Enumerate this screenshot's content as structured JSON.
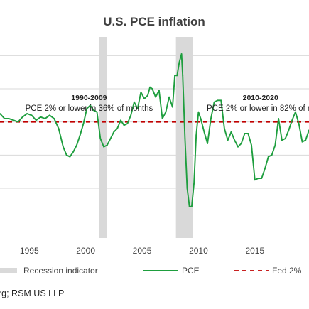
{
  "chart_data": {
    "type": "line",
    "title": "U.S. PCE inflation",
    "x_range": [
      1992.4,
      2019.8
    ],
    "y_range": [
      -1.5,
      4.5
    ],
    "grid": "horizontal",
    "x_ticks": [
      {
        "value": 1995,
        "label": "1995"
      },
      {
        "value": 2000,
        "label": "2000"
      },
      {
        "value": 2005,
        "label": "2005"
      },
      {
        "value": 2010,
        "label": "2010"
      },
      {
        "value": 2015,
        "label": "2015"
      }
    ],
    "y_gridlines": [
      0,
      1,
      2,
      3,
      4
    ],
    "recessions": [
      {
        "start": 2001.2,
        "end": 2001.9
      },
      {
        "start": 2008.0,
        "end": 2009.5
      }
    ],
    "reference_line": {
      "name": "Fed 2%",
      "value": 2.0,
      "color": "#c00000"
    },
    "series": [
      {
        "name": "PCE",
        "color": "#1e9e3e",
        "x": [
          1992.4,
          1992.8,
          1993.2,
          1993.6,
          1994.0,
          1994.4,
          1994.8,
          1995.2,
          1995.6,
          1996.0,
          1996.4,
          1996.8,
          1997.2,
          1997.6,
          1998.0,
          1998.3,
          1998.6,
          1998.9,
          1999.2,
          1999.5,
          1999.8,
          2000.1,
          2000.4,
          2000.7,
          2001.0,
          2001.3,
          2001.6,
          2001.9,
          2002.2,
          2002.5,
          2002.8,
          2003.1,
          2003.4,
          2003.7,
          2004.0,
          2004.3,
          2004.6,
          2004.9,
          2005.2,
          2005.5,
          2005.7,
          2005.9,
          2006.2,
          2006.5,
          2006.8,
          2007.1,
          2007.4,
          2007.7,
          2007.9,
          2008.1,
          2008.3,
          2008.5,
          2008.6,
          2008.8,
          2009.0,
          2009.2,
          2009.4,
          2009.6,
          2009.8,
          2010.0,
          2010.2,
          2010.5,
          2010.8,
          2011.1,
          2011.4,
          2011.7,
          2012.0,
          2012.3,
          2012.6,
          2012.9,
          2013.2,
          2013.5,
          2013.8,
          2014.1,
          2014.4,
          2014.7,
          2015.0,
          2015.3,
          2015.6,
          2015.9,
          2016.2,
          2016.5,
          2016.8,
          2017.1,
          2017.4,
          2017.7,
          2018.0,
          2018.3,
          2018.6,
          2018.9,
          2019.2,
          2019.5,
          2019.8
        ],
        "y": [
          2.25,
          2.1,
          2.1,
          2.05,
          2.0,
          2.15,
          2.25,
          2.2,
          2.05,
          2.15,
          2.1,
          2.2,
          2.1,
          1.8,
          1.25,
          1.0,
          0.95,
          1.1,
          1.3,
          1.6,
          1.95,
          2.4,
          2.5,
          2.35,
          2.3,
          1.5,
          1.25,
          1.3,
          1.5,
          1.7,
          1.8,
          2.05,
          1.9,
          1.95,
          2.2,
          2.6,
          2.4,
          2.9,
          2.7,
          2.8,
          3.05,
          3.0,
          2.75,
          2.95,
          2.1,
          2.3,
          2.75,
          2.45,
          3.4,
          3.4,
          3.8,
          4.05,
          3.4,
          1.5,
          0.0,
          -0.55,
          -0.55,
          0.15,
          1.6,
          2.3,
          2.1,
          1.7,
          1.35,
          2.1,
          2.6,
          2.65,
          2.65,
          1.8,
          1.45,
          1.7,
          1.45,
          1.25,
          1.35,
          1.65,
          1.65,
          1.3,
          0.25,
          0.3,
          0.3,
          0.6,
          0.95,
          1.0,
          1.3,
          2.1,
          1.45,
          1.5,
          1.75,
          2.05,
          2.3,
          1.95,
          1.4,
          1.45,
          1.75
        ]
      }
    ],
    "annotations": [
      {
        "heading": "1990-2009",
        "text": "PCE 2% or lower in 36% of months",
        "x_center": 2000.3
      },
      {
        "heading": "2010-2020",
        "text": "PCE 2% or lower in 82% of m",
        "x_center": 2015.5
      }
    ],
    "legend": {
      "placement": "bottom",
      "items": [
        {
          "label": "Recession indicator",
          "kind": "recession"
        },
        {
          "label": "PCE",
          "kind": "pce"
        },
        {
          "label": "Fed 2%",
          "kind": "fed"
        }
      ]
    },
    "colors": {
      "recession": "#d9d9d9",
      "grid": "#d9d9d9",
      "text": "#404040"
    }
  },
  "source_text": "rg; RSM US LLP"
}
